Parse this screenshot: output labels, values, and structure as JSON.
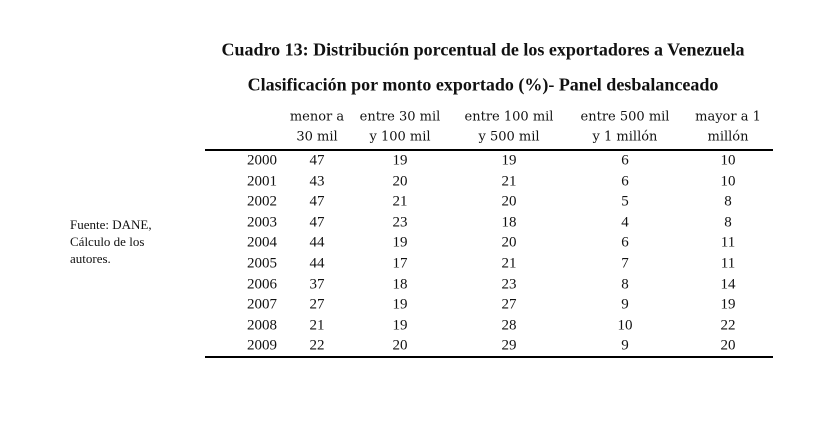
{
  "title": "Cuadro 13: Distribución porcentual de los exportadores a Venezuela",
  "subtitle": "Clasificación por monto exportado (%)- Panel desbalanceado",
  "table": {
    "header": [
      [
        "menor a",
        "30 mil"
      ],
      [
        "entre 30 mil",
        "y 100 mil"
      ],
      [
        "entre 100 mil",
        "y 500 mil"
      ],
      [
        "entre 500 mil",
        "y 1 millón"
      ],
      [
        "mayor a 1",
        "millón"
      ]
    ],
    "rows": [
      [
        2000,
        47,
        19,
        19,
        6,
        10
      ],
      [
        2001,
        43,
        20,
        21,
        6,
        10
      ],
      [
        2002,
        47,
        21,
        20,
        5,
        8
      ],
      [
        2003,
        47,
        23,
        18,
        4,
        8
      ],
      [
        2004,
        44,
        19,
        20,
        6,
        11
      ],
      [
        2005,
        44,
        17,
        21,
        7,
        11
      ],
      [
        2006,
        37,
        18,
        23,
        8,
        14
      ],
      [
        2007,
        27,
        19,
        27,
        9,
        19
      ],
      [
        2008,
        21,
        19,
        28,
        10,
        22
      ],
      [
        2009,
        22,
        20,
        29,
        9,
        20
      ]
    ]
  },
  "source": [
    "Fuente: DANE,",
    "Cálculo de los",
    "autores."
  ]
}
